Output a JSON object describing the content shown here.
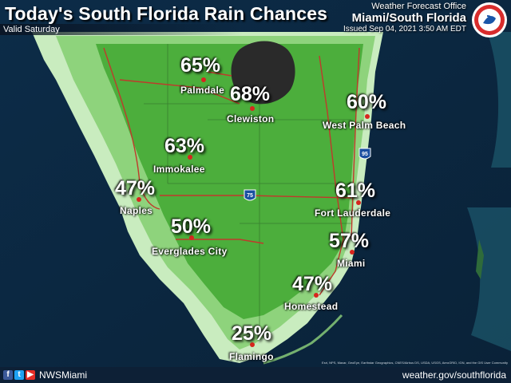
{
  "header": {
    "title": "Today's South Florida Rain Chances",
    "valid": "Valid Saturday"
  },
  "office": {
    "line1": "Weather Forecast Office",
    "line2": "Miami/South Florida",
    "issued": "Issued Sep 04, 2021 3:50 AM EDT"
  },
  "highways": {
    "i75": "75",
    "i95": "95"
  },
  "cities": [
    {
      "name": "Palmdale",
      "pct": "65%"
    },
    {
      "name": "Clewiston",
      "pct": "68%"
    },
    {
      "name": "West Palm Beach",
      "pct": "60%"
    },
    {
      "name": "Immokalee",
      "pct": "63%"
    },
    {
      "name": "Naples",
      "pct": "47%"
    },
    {
      "name": "Fort Lauderdale",
      "pct": "61%"
    },
    {
      "name": "Everglades City",
      "pct": "50%"
    },
    {
      "name": "Miami",
      "pct": "57%"
    },
    {
      "name": "Homestead",
      "pct": "47%"
    },
    {
      "name": "Flamingo",
      "pct": "25%"
    }
  ],
  "footer": {
    "handle": "NWSMiami",
    "site": "weather.gov/southflorida",
    "credits": "Esri, NPS, Maxar, GeoEye, Earthstar Geographics, CNES/Airbus DS, USDA, USGS, AeroGRID, IGN, and the GIS User Community"
  },
  "colors": {
    "water": "#0b2a45",
    "land_high": "#4cae3c",
    "land_mid": "#8ed37c",
    "land_low": "#c9ecbf",
    "lake": "#2a2a2a",
    "roads": "#c0392b",
    "city_dot": "#d7261e"
  }
}
